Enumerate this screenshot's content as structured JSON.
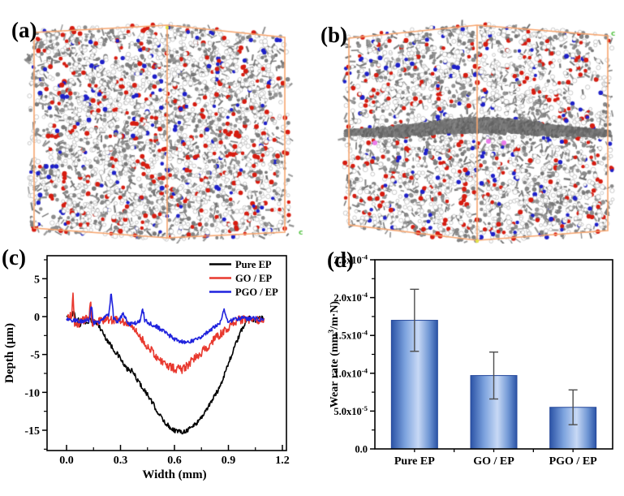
{
  "figure": {
    "background": "#ffffff",
    "panels": {
      "a": {
        "label": "(a)",
        "type": "molecular-snapshot"
      },
      "b": {
        "label": "(b)",
        "type": "molecular-snapshot"
      },
      "c": {
        "label": "(c)",
        "type": "line-chart"
      },
      "d": {
        "label": "(d)",
        "type": "bar-chart"
      }
    }
  },
  "molecular": {
    "box_color": "#f7a56e",
    "axis_marker_letter": "c",
    "axis_marker_color": "#55c344",
    "origin_marker_color": "#e2e24a",
    "atom_colors": {
      "hydrogen": "#ffffff",
      "carbon": "#848484",
      "oxygen": "#d61c10",
      "nitrogen": "#1e20c8",
      "sheet": "#6d6d6d",
      "phosphorus": "#ea7cea"
    }
  },
  "chart_data": [
    {
      "id": "c",
      "type": "line",
      "xlabel": "Width (mm)",
      "ylabel": "Depth (μm)",
      "xlim": [
        -0.11,
        1.23
      ],
      "ylim": [
        -17.7,
        8.0
      ],
      "xticks": [
        {
          "v": 0.0,
          "t": "0.0"
        },
        {
          "v": 0.3,
          "t": "0.3"
        },
        {
          "v": 0.6,
          "t": "0.6"
        },
        {
          "v": 0.9,
          "t": "0.9"
        },
        {
          "v": 1.2,
          "t": "1.2"
        }
      ],
      "xminor": [
        0.15,
        0.45,
        0.75,
        1.05
      ],
      "yticks": [
        {
          "v": 5,
          "t": "5"
        },
        {
          "v": 0,
          "t": "0"
        },
        {
          "v": -5,
          "t": "-5"
        },
        {
          "v": -10,
          "t": "-10"
        },
        {
          "v": -15,
          "t": "-15"
        }
      ],
      "yminor": [
        7.5,
        2.5,
        -2.5,
        -7.5,
        -12.5,
        -17.5
      ],
      "legend_position": "top-right-inside",
      "grid": false,
      "series": [
        {
          "name": "Pure EP",
          "color": "#000000",
          "noise": 0.32,
          "points": [
            [
              0.0,
              -0.2
            ],
            [
              0.03,
              0.2
            ],
            [
              0.045,
              0.7
            ],
            [
              0.055,
              -1.4
            ],
            [
              0.065,
              -0.3
            ],
            [
              0.075,
              -1.1
            ],
            [
              0.09,
              -0.5
            ],
            [
              0.11,
              -0.8
            ],
            [
              0.13,
              -0.4
            ],
            [
              0.15,
              -0.6
            ],
            [
              0.17,
              -0.9
            ],
            [
              0.19,
              -1.6
            ],
            [
              0.21,
              -2.5
            ],
            [
              0.24,
              -3.6
            ],
            [
              0.27,
              -4.6
            ],
            [
              0.3,
              -5.5
            ],
            [
              0.32,
              -6.5
            ],
            [
              0.34,
              -7.0
            ],
            [
              0.365,
              -7.2
            ],
            [
              0.39,
              -8.2
            ],
            [
              0.42,
              -9.3
            ],
            [
              0.45,
              -10.3
            ],
            [
              0.48,
              -11.5
            ],
            [
              0.51,
              -12.7
            ],
            [
              0.54,
              -13.8
            ],
            [
              0.57,
              -14.5
            ],
            [
              0.6,
              -15.0
            ],
            [
              0.63,
              -15.2
            ],
            [
              0.66,
              -15.1
            ],
            [
              0.69,
              -14.7
            ],
            [
              0.72,
              -14.1
            ],
            [
              0.75,
              -13.3
            ],
            [
              0.78,
              -12.2
            ],
            [
              0.81,
              -11.0
            ],
            [
              0.84,
              -9.8
            ],
            [
              0.865,
              -8.5
            ],
            [
              0.88,
              -7.4
            ],
            [
              0.9,
              -6.2
            ],
            [
              0.925,
              -4.6
            ],
            [
              0.95,
              -3.1
            ],
            [
              0.975,
              -1.7
            ],
            [
              1.0,
              -0.6
            ],
            [
              1.02,
              -0.1
            ],
            [
              1.045,
              -0.5
            ],
            [
              1.07,
              -0.2
            ],
            [
              1.1,
              -0.3
            ]
          ]
        },
        {
          "name": "GO / EP",
          "color": "#e8382e",
          "noise": 0.55,
          "points": [
            [
              0.0,
              -0.4
            ],
            [
              0.02,
              0.1
            ],
            [
              0.03,
              0.3
            ],
            [
              0.036,
              2.7
            ],
            [
              0.044,
              -0.9
            ],
            [
              0.06,
              -1.0
            ],
            [
              0.08,
              -0.7
            ],
            [
              0.1,
              -0.4
            ],
            [
              0.125,
              -0.3
            ],
            [
              0.132,
              2.3
            ],
            [
              0.142,
              -0.8
            ],
            [
              0.16,
              -0.7
            ],
            [
              0.19,
              -0.5
            ],
            [
              0.22,
              -0.4
            ],
            [
              0.25,
              -0.5
            ],
            [
              0.28,
              -0.4
            ],
            [
              0.31,
              -0.7
            ],
            [
              0.34,
              -1.0
            ],
            [
              0.37,
              -1.5
            ],
            [
              0.4,
              -2.4
            ],
            [
              0.43,
              -3.3
            ],
            [
              0.46,
              -4.2
            ],
            [
              0.49,
              -5.0
            ],
            [
              0.52,
              -5.7
            ],
            [
              0.55,
              -6.3
            ],
            [
              0.58,
              -6.7
            ],
            [
              0.61,
              -6.9
            ],
            [
              0.64,
              -7.0
            ],
            [
              0.67,
              -6.5
            ],
            [
              0.7,
              -5.7
            ],
            [
              0.73,
              -5.1
            ],
            [
              0.76,
              -4.5
            ],
            [
              0.79,
              -3.8
            ],
            [
              0.82,
              -3.1
            ],
            [
              0.85,
              -2.4
            ],
            [
              0.88,
              -1.9
            ],
            [
              0.91,
              -1.2
            ],
            [
              0.94,
              -0.6
            ],
            [
              0.97,
              -0.4
            ],
            [
              1.0,
              -0.3
            ],
            [
              1.03,
              -0.6
            ],
            [
              1.06,
              -0.4
            ],
            [
              1.08,
              -0.5
            ],
            [
              1.1,
              -0.2
            ]
          ]
        },
        {
          "name": "PGO / EP",
          "color": "#1f22dd",
          "noise": 0.28,
          "points": [
            [
              0.0,
              -0.3
            ],
            [
              0.04,
              -0.5
            ],
            [
              0.08,
              -0.6
            ],
            [
              0.11,
              -0.4
            ],
            [
              0.128,
              -0.5
            ],
            [
              0.138,
              1.5
            ],
            [
              0.15,
              -0.9
            ],
            [
              0.18,
              -0.7
            ],
            [
              0.21,
              -0.2
            ],
            [
              0.235,
              0.3
            ],
            [
              0.248,
              3.4
            ],
            [
              0.262,
              -0.4
            ],
            [
              0.29,
              -0.6
            ],
            [
              0.315,
              0.4
            ],
            [
              0.34,
              -0.9
            ],
            [
              0.37,
              -1.0
            ],
            [
              0.4,
              -0.7
            ],
            [
              0.412,
              -0.5
            ],
            [
              0.422,
              1.2
            ],
            [
              0.435,
              -0.5
            ],
            [
              0.47,
              -1.0
            ],
            [
              0.5,
              -1.3
            ],
            [
              0.53,
              -1.8
            ],
            [
              0.56,
              -2.3
            ],
            [
              0.59,
              -2.8
            ],
            [
              0.62,
              -3.2
            ],
            [
              0.65,
              -3.4
            ],
            [
              0.68,
              -3.3
            ],
            [
              0.71,
              -3.1
            ],
            [
              0.74,
              -2.8
            ],
            [
              0.77,
              -2.3
            ],
            [
              0.8,
              -1.8
            ],
            [
              0.83,
              -1.2
            ],
            [
              0.855,
              -0.7
            ],
            [
              0.868,
              0.4
            ],
            [
              0.878,
              1.0
            ],
            [
              0.89,
              -0.5
            ],
            [
              0.92,
              -0.5
            ],
            [
              0.95,
              -0.3
            ],
            [
              0.98,
              -0.2
            ],
            [
              1.01,
              -0.3
            ],
            [
              1.04,
              -0.2
            ],
            [
              1.07,
              -0.4
            ],
            [
              1.1,
              -0.2
            ]
          ]
        }
      ]
    },
    {
      "id": "d",
      "type": "bar",
      "ylabel": "Wear rate (mm{3}/m·N)",
      "categories": [
        "Pure EP",
        "GO / EP",
        "PGO / EP"
      ],
      "values": [
        0.00017,
        9.7e-05,
        5.5e-05
      ],
      "errors": [
        4.1e-05,
        3.1e-05,
        2.3e-05
      ],
      "ylim": [
        0,
        0.00025
      ],
      "yticks": [
        {
          "v": 0,
          "t": "0.0"
        },
        {
          "v": 5e-05,
          "t": "5.0x10{-5}"
        },
        {
          "v": 0.0001,
          "t": "1.0x10{-4}"
        },
        {
          "v": 0.00015,
          "t": "1.5x10{-4}"
        },
        {
          "v": 0.0002,
          "t": "2.0x10{-4}"
        },
        {
          "v": 0.00025,
          "t": "2.5x10{-4}"
        }
      ],
      "yminor": [
        2.5e-05,
        7.5e-05,
        0.000125,
        0.000175,
        0.000225
      ],
      "bar_gradient": [
        "#2b53a6",
        "#7da3de",
        "#c8d9f5",
        "#6f96d4",
        "#2b53a6"
      ],
      "bar_edge": "#24479a",
      "error_color": "#4d4d4d",
      "grid": false
    }
  ]
}
